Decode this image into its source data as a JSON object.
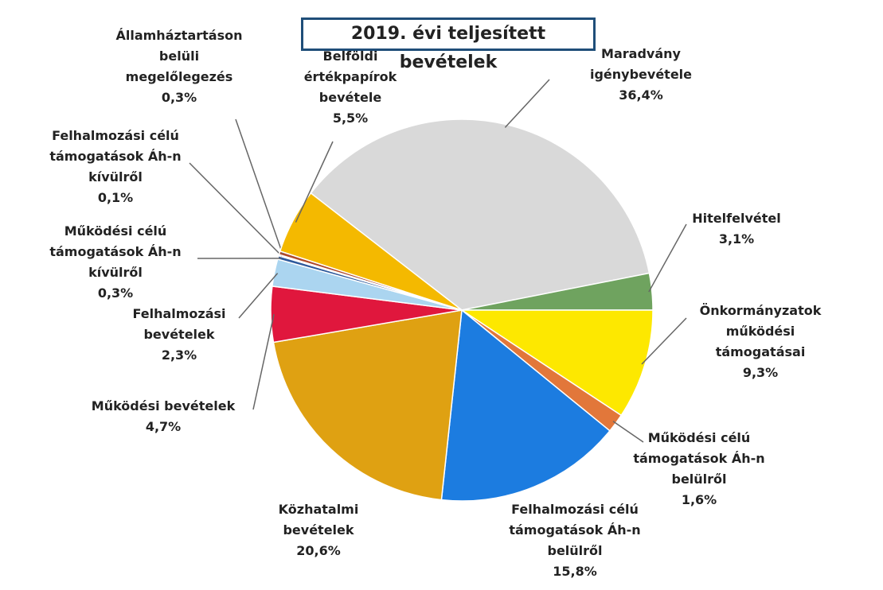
{
  "chart_data": {
    "type": "pie",
    "title": "2019. évi teljesített bevételek",
    "categories": [
      "Maradvány\nigénybevétele",
      "Hitelfelvétel",
      "Önkormányzatok\nműködési\ntámogatásai",
      "Működési célú\ntámogatások Áh-n\nbelülről",
      "Felhalmozási célú\ntámogatások Áh-n\nbelülről",
      "Közhatalmi\nbevételek",
      "Működési bevételek",
      "Felhalmozási\nbevételek",
      "Működési célú\ntámogatások Áh-n\nkívülről",
      "Felhalmozási célú\ntámogatások Áh-n\nkívülről",
      "Államháztartáson\nbelüli\nmegelőlegezés",
      "Belföldi\nértékpapírok\nbevétele"
    ],
    "values": [
      36.4,
      3.1,
      9.3,
      1.6,
      15.8,
      20.6,
      4.7,
      2.3,
      0.3,
      0.1,
      0.3,
      5.5
    ],
    "value_labels": [
      "36,4%",
      "3,1%",
      "9,3%",
      "1,6%",
      "15,8%",
      "20,6%",
      "4,7%",
      "2,3%",
      "0,3%",
      "0,1%",
      "0,3%",
      "5,5%"
    ],
    "colors": [
      "#d9d9d9",
      "#6fa35f",
      "#fde800",
      "#e2773a",
      "#1c7ce0",
      "#dfa112",
      "#e0173d",
      "#abd5f0",
      "#2e5a9c",
      "#8a8a8a",
      "#b04a2a",
      "#f4b900"
    ]
  }
}
